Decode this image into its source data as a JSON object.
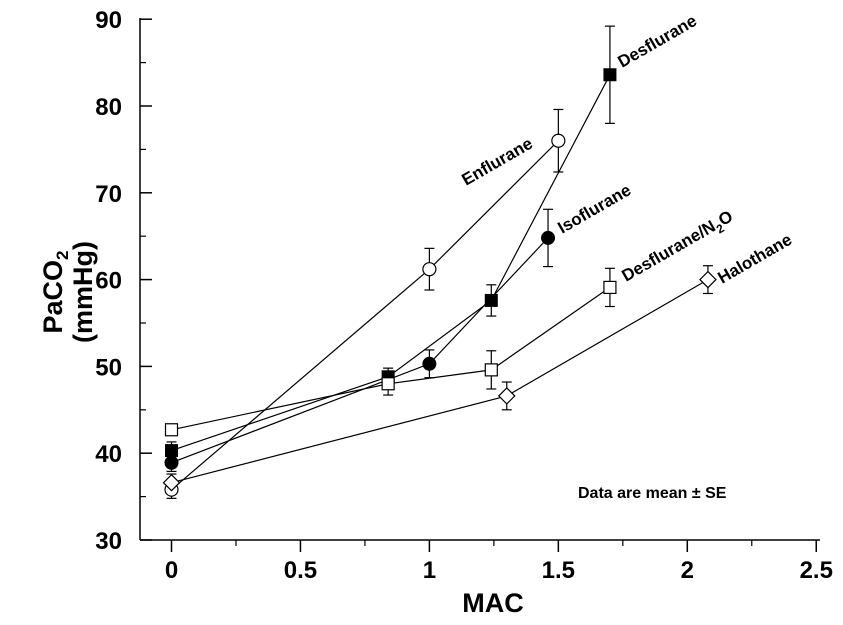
{
  "chart_data": {
    "type": "line",
    "xlabel": "MAC",
    "ylabel_line1": "PaCO",
    "ylabel_sub": "2",
    "ylabel_line2": "(mmHg)",
    "xlim": [
      -0.15,
      2.5
    ],
    "ylim": [
      30,
      90
    ],
    "xticks": [
      0,
      0.5,
      1,
      1.5,
      2,
      2.5
    ],
    "xtick_labels": [
      "0",
      "0.5",
      "1",
      "1.5",
      "2",
      "2.5"
    ],
    "yticks": [
      30,
      40,
      50,
      60,
      70,
      80,
      90
    ],
    "ytick_labels": [
      "30",
      "40",
      "50",
      "60",
      "70",
      "80",
      "90"
    ],
    "grid": false,
    "annotation": "Data are mean ± SE",
    "series": [
      {
        "name": "Desflurane",
        "marker": "filled-square",
        "x": [
          0,
          0.84,
          1.24,
          1.7
        ],
        "y": [
          40.3,
          48.8,
          57.6,
          83.6
        ],
        "se": [
          1.0,
          1.0,
          1.8,
          5.6
        ]
      },
      {
        "name": "Enflurane",
        "marker": "open-circle",
        "x": [
          0,
          1,
          1.5
        ],
        "y": [
          35.8,
          61.2,
          76.0
        ],
        "se": [
          1.0,
          2.4,
          3.6
        ]
      },
      {
        "name": "Isoflurane",
        "marker": "filled-circle",
        "x": [
          0,
          1,
          1.46
        ],
        "y": [
          38.9,
          50.3,
          64.8
        ],
        "se": [
          1.0,
          1.6,
          3.3
        ]
      },
      {
        "name": "Desflurane/N",
        "name_sub": "2",
        "name_suffix": "O",
        "marker": "open-square",
        "x": [
          0,
          0.84,
          1.24,
          1.7
        ],
        "y": [
          42.7,
          48.0,
          49.6,
          59.1
        ],
        "se": [
          0.6,
          1.3,
          2.2,
          2.2
        ]
      },
      {
        "name": "Halothane",
        "marker": "open-diamond",
        "x": [
          0,
          1.3,
          2.08
        ],
        "y": [
          36.6,
          46.6,
          60.0
        ],
        "se": [
          1.0,
          1.6,
          1.6
        ]
      }
    ]
  }
}
